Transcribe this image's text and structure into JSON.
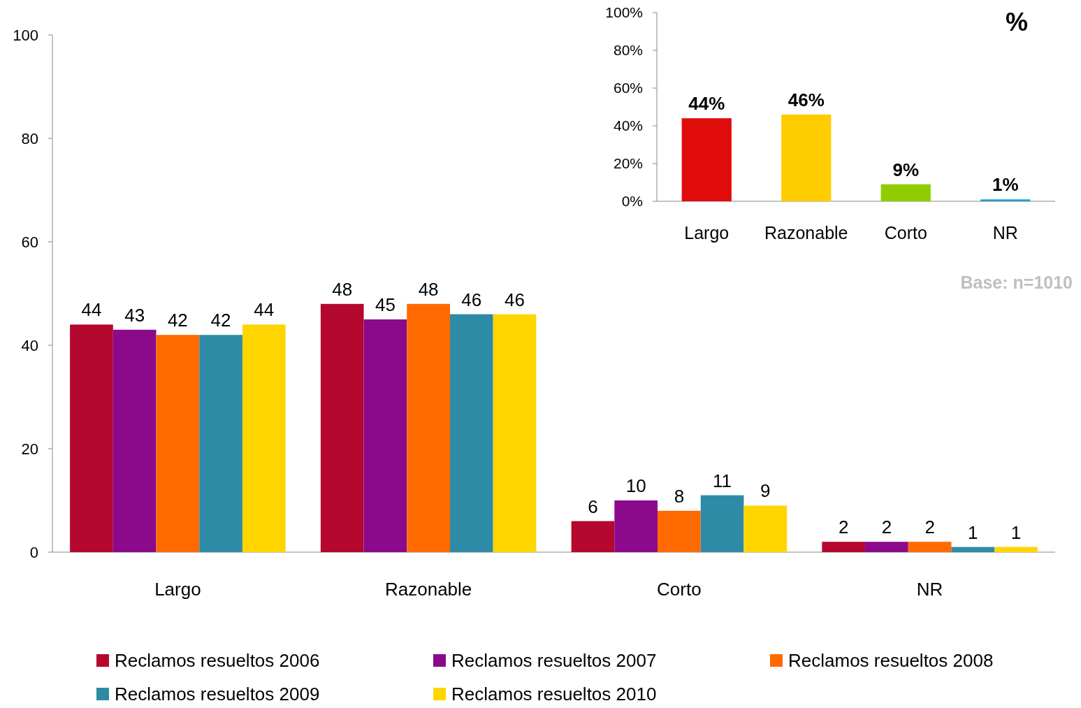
{
  "chart_data": [
    {
      "type": "bar",
      "categories": [
        "Largo",
        "Razonable",
        "Corto",
        "NR"
      ],
      "ylim": [
        0,
        100
      ],
      "yticks": [
        0,
        20,
        40,
        60,
        80,
        100
      ],
      "data_labels": true,
      "legend": "bottom",
      "series": [
        {
          "name": "Reclamos resueltos 2006",
          "color": "#b5082e",
          "values": [
            44,
            48,
            6,
            2
          ]
        },
        {
          "name": "Reclamos resueltos 2007",
          "color": "#8b0a8b",
          "values": [
            43,
            45,
            10,
            2
          ]
        },
        {
          "name": "Reclamos resueltos 2008",
          "color": "#ff6a00",
          "values": [
            42,
            48,
            8,
            2
          ]
        },
        {
          "name": "Reclamos resueltos 2009",
          "color": "#2e8ba6",
          "values": [
            42,
            46,
            11,
            1
          ]
        },
        {
          "name": "Reclamos resueltos 2010",
          "color": "#ffd500",
          "values": [
            44,
            46,
            9,
            1
          ]
        }
      ]
    },
    {
      "type": "bar",
      "title": "%",
      "categories": [
        "Largo",
        "Razonable",
        "Corto",
        "NR"
      ],
      "values": [
        44,
        46,
        9,
        1
      ],
      "colors": [
        "#e00b0b",
        "#ffcc00",
        "#8fcc00",
        "#1a9ed9"
      ],
      "value_labels": [
        "44%",
        "46%",
        "9%",
        "1%"
      ],
      "ylim": [
        0,
        100
      ],
      "yticks": [
        {
          "value": 0,
          "label": "0%"
        },
        {
          "value": 20,
          "label": "20%"
        },
        {
          "value": 40,
          "label": "40%"
        },
        {
          "value": 60,
          "label": "60%"
        },
        {
          "value": 80,
          "label": "80%"
        },
        {
          "value": 100,
          "label": "100%"
        }
      ],
      "annotations": [
        "Base: n=1010"
      ]
    }
  ]
}
